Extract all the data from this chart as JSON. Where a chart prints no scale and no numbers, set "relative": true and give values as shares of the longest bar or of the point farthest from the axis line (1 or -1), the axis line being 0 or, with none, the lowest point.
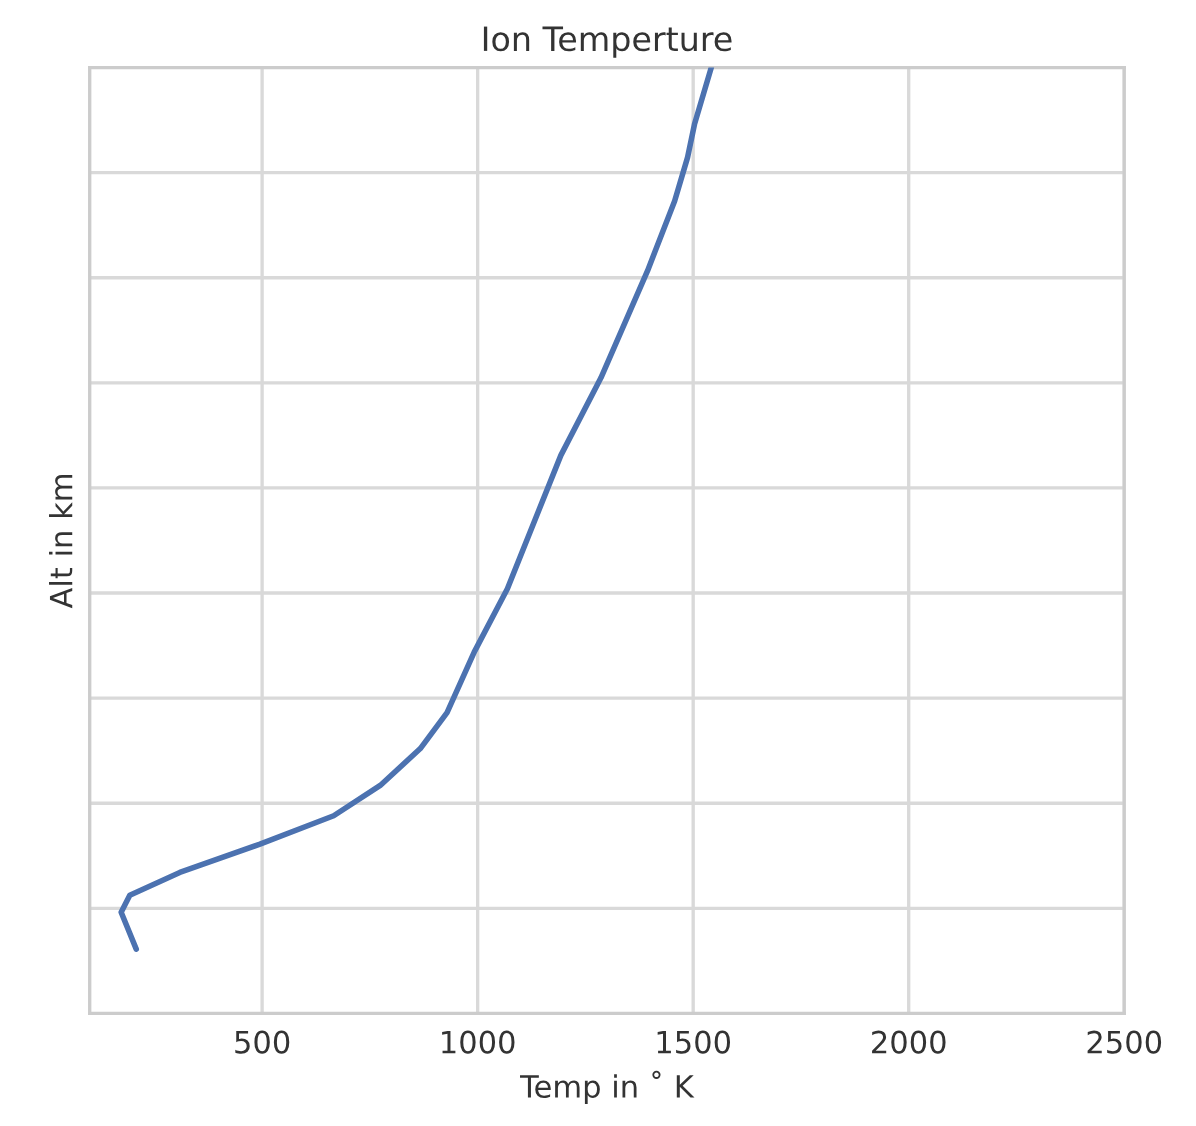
{
  "chart_data": {
    "type": "line",
    "title": "Ion Temperture",
    "xlabel": "Temp in ˚ K",
    "ylabel": "Alt in km",
    "relative": true,
    "xlim": [
      100,
      2500
    ],
    "xticks": [
      500,
      1000,
      1500,
      2000,
      2500
    ],
    "grid": true,
    "tick_labels": "x",
    "series": [
      {
        "color": "#4c72b0",
        "x": [
          208,
          173,
          193,
          309,
          495,
          666,
          774,
          867,
          929,
          992,
          1069,
          1193,
          1286,
          1394,
          1457,
          1487,
          1503,
          1542
        ],
        "values": [
          0.068,
          0.107,
          0.125,
          0.149,
          0.179,
          0.209,
          0.241,
          0.28,
          0.318,
          0.382,
          0.449,
          0.59,
          0.672,
          0.785,
          0.859,
          0.905,
          0.94,
          1.0
        ]
      }
    ]
  }
}
